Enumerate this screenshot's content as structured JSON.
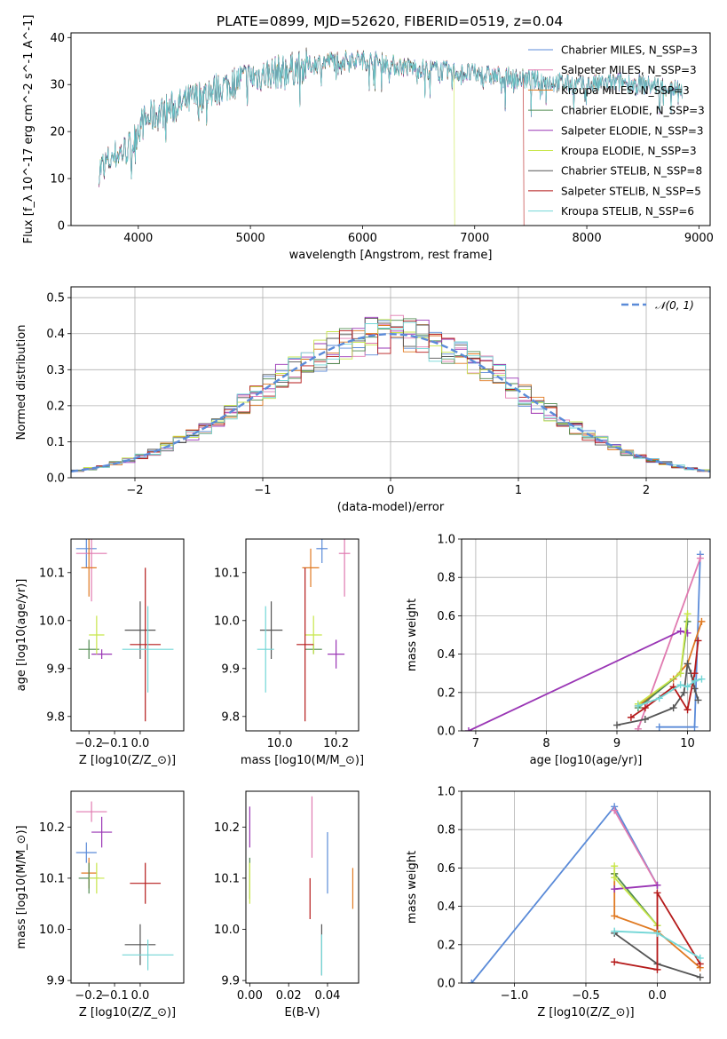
{
  "figure_title": "PLATE=0899, MJD=52620, FIBERID=0519, z=0.04",
  "colors": {
    "chabrier_miles": "#5b8bd8",
    "salpeter_miles": "#e07ab0",
    "kroupa_miles": "#e07a22",
    "chabrier_elodie": "#4f8a4f",
    "salpeter_elodie": "#9a36b5",
    "kroupa_elodie": "#c8e64a",
    "chabrier_stelib": "#555555",
    "salpeter_stelib": "#b51a1a",
    "kroupa_stelib": "#72d6d6",
    "normal_line": "#5b8bd8"
  },
  "chart_data": [
    {
      "id": "spectrum",
      "type": "line",
      "title": "PLATE=0899, MJD=52620, FIBERID=0519, z=0.04",
      "xlabel": "wavelength [Angstrom, rest frame]",
      "ylabel": "Flux [f_λ 10^-17 erg cm^-2 s^-1 A^-1]",
      "xlim": [
        3400,
        9100
      ],
      "ylim": [
        0,
        41
      ],
      "xticks": [
        4000,
        5000,
        6000,
        7000,
        8000,
        9000
      ],
      "yticks": [
        0,
        10,
        20,
        30,
        40
      ],
      "legend": [
        {
          "key": "chabrier_miles",
          "label": "Chabrier MILES, N_SSP=3"
        },
        {
          "key": "salpeter_miles",
          "label": "Salpeter MILES, N_SSP=3"
        },
        {
          "key": "kroupa_miles",
          "label": "Kroupa MILES, N_SSP=3"
        },
        {
          "key": "chabrier_elodie",
          "label": "Chabrier ELODIE, N_SSP=3"
        },
        {
          "key": "salpeter_elodie",
          "label": "Salpeter ELODIE, N_SSP=3"
        },
        {
          "key": "kroupa_elodie",
          "label": "Kroupa ELODIE, N_SSP=3"
        },
        {
          "key": "chabrier_stelib",
          "label": "Chabrier STELIB, N_SSP=8"
        },
        {
          "key": "salpeter_stelib",
          "label": "Salpeter STELIB, N_SSP=5"
        },
        {
          "key": "kroupa_stelib",
          "label": "Kroupa STELIB, N_SSP=6"
        }
      ],
      "legend_position": "upper-right",
      "continuum": [
        [
          3650,
          12
        ],
        [
          3800,
          15
        ],
        [
          3950,
          17
        ],
        [
          4000,
          21
        ],
        [
          4100,
          23
        ],
        [
          4300,
          25
        ],
        [
          4500,
          27
        ],
        [
          4700,
          29
        ],
        [
          4900,
          31
        ],
        [
          5100,
          32
        ],
        [
          5300,
          33
        ],
        [
          5500,
          34
        ],
        [
          5700,
          35
        ],
        [
          5900,
          35.5
        ],
        [
          6100,
          35
        ],
        [
          6300,
          34
        ],
        [
          6500,
          33.5
        ],
        [
          6700,
          33
        ],
        [
          6900,
          32.5
        ],
        [
          7100,
          32
        ],
        [
          7300,
          31.5
        ],
        [
          7500,
          31
        ],
        [
          7700,
          30.5
        ],
        [
          7900,
          30
        ],
        [
          8100,
          30
        ],
        [
          8300,
          30.5
        ],
        [
          8500,
          30
        ],
        [
          8700,
          29.5
        ],
        [
          8850,
          29
        ]
      ],
      "model_cutoffs": [
        {
          "key": "kroupa_elodie",
          "from": 6800
        },
        {
          "key": "salpeter_stelib",
          "from": 7420
        }
      ]
    },
    {
      "id": "residuals",
      "type": "line",
      "xlabel": "(data-model)/error",
      "ylabel": "Normed distribution",
      "xlim": [
        -2.5,
        2.5
      ],
      "ylim": [
        0,
        0.53
      ],
      "xticks": [
        -2,
        -1,
        0,
        1,
        2
      ],
      "yticks": [
        0.0,
        0.1,
        0.2,
        0.3,
        0.4,
        0.5
      ],
      "grid": true,
      "series": [
        {
          "name": "𝒩(0, 1)",
          "type": "gaussian",
          "mean": 0,
          "sigma": 1
        }
      ],
      "legend_position": "upper-right"
    },
    {
      "id": "age_vs_z",
      "type": "errorbar",
      "xlabel": "Z [log10(Z/Z_⊙)]",
      "ylabel": "age [log10(age/yr)]",
      "xlim": [
        -0.27,
        0.17
      ],
      "ylim": [
        9.77,
        10.17
      ],
      "xticks": [
        -0.2,
        -0.1,
        0.0
      ],
      "yticks": [
        9.8,
        9.9,
        10.0,
        10.1
      ],
      "points": [
        {
          "key": "chabrier_miles",
          "x": -0.21,
          "y": 10.15,
          "xerr": 0.04,
          "yerr": 0.04
        },
        {
          "key": "salpeter_miles",
          "x": -0.19,
          "y": 10.14,
          "xerr": 0.06,
          "yerr": 0.1
        },
        {
          "key": "kroupa_miles",
          "x": -0.2,
          "y": 10.11,
          "xerr": 0.03,
          "yerr": 0.06
        },
        {
          "key": "chabrier_elodie",
          "x": -0.2,
          "y": 9.94,
          "xerr": 0.04,
          "yerr": 0.02
        },
        {
          "key": "salpeter_elodie",
          "x": -0.15,
          "y": 9.93,
          "xerr": 0.04,
          "yerr": 0.01
        },
        {
          "key": "kroupa_elodie",
          "x": -0.17,
          "y": 9.97,
          "xerr": 0.03,
          "yerr": 0.04
        },
        {
          "key": "chabrier_stelib",
          "x": 0.0,
          "y": 9.98,
          "xerr": 0.06,
          "yerr": 0.06
        },
        {
          "key": "salpeter_stelib",
          "x": 0.02,
          "y": 9.95,
          "xerr": 0.06,
          "yerr": 0.16
        },
        {
          "key": "kroupa_stelib",
          "x": 0.03,
          "y": 9.94,
          "xerr": 0.1,
          "yerr": 0.09
        }
      ]
    },
    {
      "id": "age_vs_mass",
      "type": "errorbar",
      "xlabel": "mass [log10(M/M_⊙)]",
      "ylim": [
        9.77,
        10.17
      ],
      "xlim": [
        9.88,
        10.28
      ],
      "xticks": [
        10.0,
        10.2
      ],
      "yticks": [
        9.8,
        9.9,
        10.0,
        10.1
      ],
      "points": [
        {
          "key": "chabrier_miles",
          "x": 10.15,
          "y": 10.15,
          "xerr": 0.02,
          "yerr": 0.03
        },
        {
          "key": "salpeter_miles",
          "x": 10.23,
          "y": 10.14,
          "xerr": 0.02,
          "yerr": 0.09
        },
        {
          "key": "kroupa_miles",
          "x": 10.11,
          "y": 10.11,
          "xerr": 0.03,
          "yerr": 0.04
        },
        {
          "key": "chabrier_elodie",
          "x": 10.12,
          "y": 9.94,
          "xerr": 0.03,
          "yerr": 0.01
        },
        {
          "key": "salpeter_elodie",
          "x": 10.2,
          "y": 9.93,
          "xerr": 0.03,
          "yerr": 0.03
        },
        {
          "key": "kroupa_elodie",
          "x": 10.12,
          "y": 9.97,
          "xerr": 0.03,
          "yerr": 0.04
        },
        {
          "key": "chabrier_stelib",
          "x": 9.97,
          "y": 9.98,
          "xerr": 0.04,
          "yerr": 0.06
        },
        {
          "key": "salpeter_stelib",
          "x": 10.09,
          "y": 9.95,
          "xerr": 0.03,
          "yerr": 0.16
        },
        {
          "key": "kroupa_stelib",
          "x": 9.95,
          "y": 9.94,
          "xerr": 0.03,
          "yerr": 0.09
        }
      ]
    },
    {
      "id": "weight_vs_age",
      "type": "line",
      "xlabel": "age [log10(age/yr)]",
      "ylabel": "mass weight",
      "xlim": [
        6.8,
        10.32
      ],
      "ylim": [
        0,
        1.0
      ],
      "xticks": [
        7,
        8,
        9,
        10
      ],
      "yticks": [
        0.0,
        0.2,
        0.4,
        0.6,
        0.8,
        1.0
      ],
      "grid": true,
      "series": [
        {
          "key": "chabrier_miles",
          "x": [
            9.6,
            10.1,
            10.18
          ],
          "y": [
            0.02,
            0.02,
            0.92
          ]
        },
        {
          "key": "salpeter_miles",
          "x": [
            9.3,
            10.18
          ],
          "y": [
            0.01,
            0.9
          ]
        },
        {
          "key": "kroupa_miles",
          "x": [
            9.3,
            9.8,
            10.0,
            10.2
          ],
          "y": [
            0.13,
            0.27,
            0.35,
            0.57
          ]
        },
        {
          "key": "chabrier_elodie",
          "x": [
            9.3,
            9.9,
            10.0
          ],
          "y": [
            0.12,
            0.3,
            0.57
          ]
        },
        {
          "key": "salpeter_elodie",
          "x": [
            6.9,
            9.9,
            10.0
          ],
          "y": [
            0.0,
            0.52,
            0.51
          ]
        },
        {
          "key": "kroupa_elodie",
          "x": [
            9.3,
            9.9,
            10.0
          ],
          "y": [
            0.14,
            0.3,
            0.61
          ]
        },
        {
          "key": "chabrier_stelib",
          "x": [
            9.0,
            9.4,
            9.8,
            9.95,
            10.0,
            10.05,
            10.1,
            10.15
          ],
          "y": [
            0.03,
            0.06,
            0.12,
            0.2,
            0.35,
            0.3,
            0.22,
            0.16
          ]
        },
        {
          "key": "salpeter_stelib",
          "x": [
            9.2,
            9.4,
            9.8,
            10.0,
            10.1,
            10.15
          ],
          "y": [
            0.07,
            0.12,
            0.23,
            0.11,
            0.3,
            0.47
          ]
        },
        {
          "key": "kroupa_stelib",
          "x": [
            9.3,
            9.6,
            9.9,
            10.0,
            10.1,
            10.2
          ],
          "y": [
            0.13,
            0.17,
            0.24,
            0.23,
            0.26,
            0.27
          ]
        }
      ]
    },
    {
      "id": "mass_vs_z",
      "type": "errorbar",
      "xlabel": "Z [log10(Z/Z_⊙)]",
      "ylabel": "mass [log10(M/M_⊙)]",
      "xlim": [
        -0.27,
        0.17
      ],
      "ylim": [
        9.895,
        10.27
      ],
      "xticks": [
        -0.2,
        -0.1,
        0.0
      ],
      "yticks": [
        9.9,
        10.0,
        10.1,
        10.2
      ],
      "points": [
        {
          "key": "chabrier_miles",
          "x": -0.21,
          "y": 10.15,
          "xerr": 0.04,
          "yerr": 0.02
        },
        {
          "key": "salpeter_miles",
          "x": -0.19,
          "y": 10.23,
          "xerr": 0.06,
          "yerr": 0.02
        },
        {
          "key": "kroupa_miles",
          "x": -0.2,
          "y": 10.11,
          "xerr": 0.03,
          "yerr": 0.03
        },
        {
          "key": "chabrier_elodie",
          "x": -0.2,
          "y": 10.1,
          "xerr": 0.04,
          "yerr": 0.03
        },
        {
          "key": "salpeter_elodie",
          "x": -0.15,
          "y": 10.19,
          "xerr": 0.04,
          "yerr": 0.03
        },
        {
          "key": "kroupa_elodie",
          "x": -0.17,
          "y": 10.1,
          "xerr": 0.03,
          "yerr": 0.03
        },
        {
          "key": "chabrier_stelib",
          "x": 0.0,
          "y": 9.97,
          "xerr": 0.06,
          "yerr": 0.04
        },
        {
          "key": "salpeter_stelib",
          "x": 0.02,
          "y": 10.09,
          "xerr": 0.06,
          "yerr": 0.04
        },
        {
          "key": "kroupa_stelib",
          "x": 0.03,
          "y": 9.95,
          "xerr": 0.1,
          "yerr": 0.03
        }
      ]
    },
    {
      "id": "mass_vs_ebv",
      "type": "errorbar",
      "xlabel": "E(B-V)",
      "xlim": [
        -0.002,
        0.056
      ],
      "ylim": [
        9.895,
        10.27
      ],
      "xticks": [
        0.0,
        0.02,
        0.04
      ],
      "yticks": [
        9.9,
        10.0,
        10.1,
        10.2
      ],
      "points": [
        {
          "key": "chabrier_miles",
          "x": 0.04,
          "y": 10.13,
          "xerr": 0.0,
          "yerr": 0.06
        },
        {
          "key": "salpeter_miles",
          "x": 0.032,
          "y": 10.2,
          "xerr": 0.0,
          "yerr": 0.06
        },
        {
          "key": "kroupa_miles",
          "x": 0.053,
          "y": 10.08,
          "xerr": 0.0,
          "yerr": 0.04
        },
        {
          "key": "chabrier_elodie",
          "x": 0.0,
          "y": 10.1,
          "xerr": 0.0,
          "yerr": 0.04
        },
        {
          "key": "salpeter_elodie",
          "x": 0.0,
          "y": 10.2,
          "xerr": 0.0,
          "yerr": 0.04
        },
        {
          "key": "kroupa_elodie",
          "x": 0.0,
          "y": 10.09,
          "xerr": 0.0,
          "yerr": 0.04
        },
        {
          "key": "chabrier_stelib",
          "x": 0.037,
          "y": 9.96,
          "xerr": 0.0,
          "yerr": 0.05
        },
        {
          "key": "salpeter_stelib",
          "x": 0.031,
          "y": 10.06,
          "xerr": 0.0,
          "yerr": 0.04
        },
        {
          "key": "kroupa_stelib",
          "x": 0.037,
          "y": 9.95,
          "xerr": 0.0,
          "yerr": 0.04
        }
      ]
    },
    {
      "id": "weight_vs_z",
      "type": "line",
      "xlabel": "Z [log10(Z/Z_⊙)]",
      "ylabel": "mass weight",
      "xlim": [
        -1.37,
        0.37
      ],
      "ylim": [
        0,
        1.0
      ],
      "xticks": [
        -1.0,
        -0.5,
        0.0
      ],
      "yticks": [
        0.0,
        0.2,
        0.4,
        0.6,
        0.8,
        1.0
      ],
      "grid": true,
      "series": [
        {
          "key": "chabrier_miles",
          "x": [
            -1.3,
            -0.3,
            0.0
          ],
          "y": [
            0.0,
            0.92,
            0.51
          ]
        },
        {
          "key": "salpeter_miles",
          "x": [
            -0.3,
            0.0
          ],
          "y": [
            0.9,
            0.51
          ]
        },
        {
          "key": "kroupa_miles",
          "x": [
            -0.3,
            -0.3,
            0.0,
            0.3
          ],
          "y": [
            0.57,
            0.35,
            0.27,
            0.08
          ]
        },
        {
          "key": "chabrier_elodie",
          "x": [
            -0.3,
            0.0
          ],
          "y": [
            0.57,
            0.3
          ]
        },
        {
          "key": "salpeter_elodie",
          "x": [
            -0.3,
            0.0
          ],
          "y": [
            0.49,
            0.51
          ]
        },
        {
          "key": "kroupa_elodie",
          "x": [
            -0.3,
            -0.3,
            0.0
          ],
          "y": [
            0.61,
            0.55,
            0.3
          ]
        },
        {
          "key": "chabrier_stelib",
          "x": [
            -0.3,
            0.0,
            0.3
          ],
          "y": [
            0.26,
            0.1,
            0.03
          ]
        },
        {
          "key": "salpeter_stelib",
          "x": [
            -0.3,
            0.0,
            0.0,
            0.3
          ],
          "y": [
            0.11,
            0.07,
            0.47,
            0.1
          ]
        },
        {
          "key": "kroupa_stelib",
          "x": [
            -0.3,
            0.0,
            0.3
          ],
          "y": [
            0.27,
            0.26,
            0.13
          ]
        }
      ]
    }
  ]
}
